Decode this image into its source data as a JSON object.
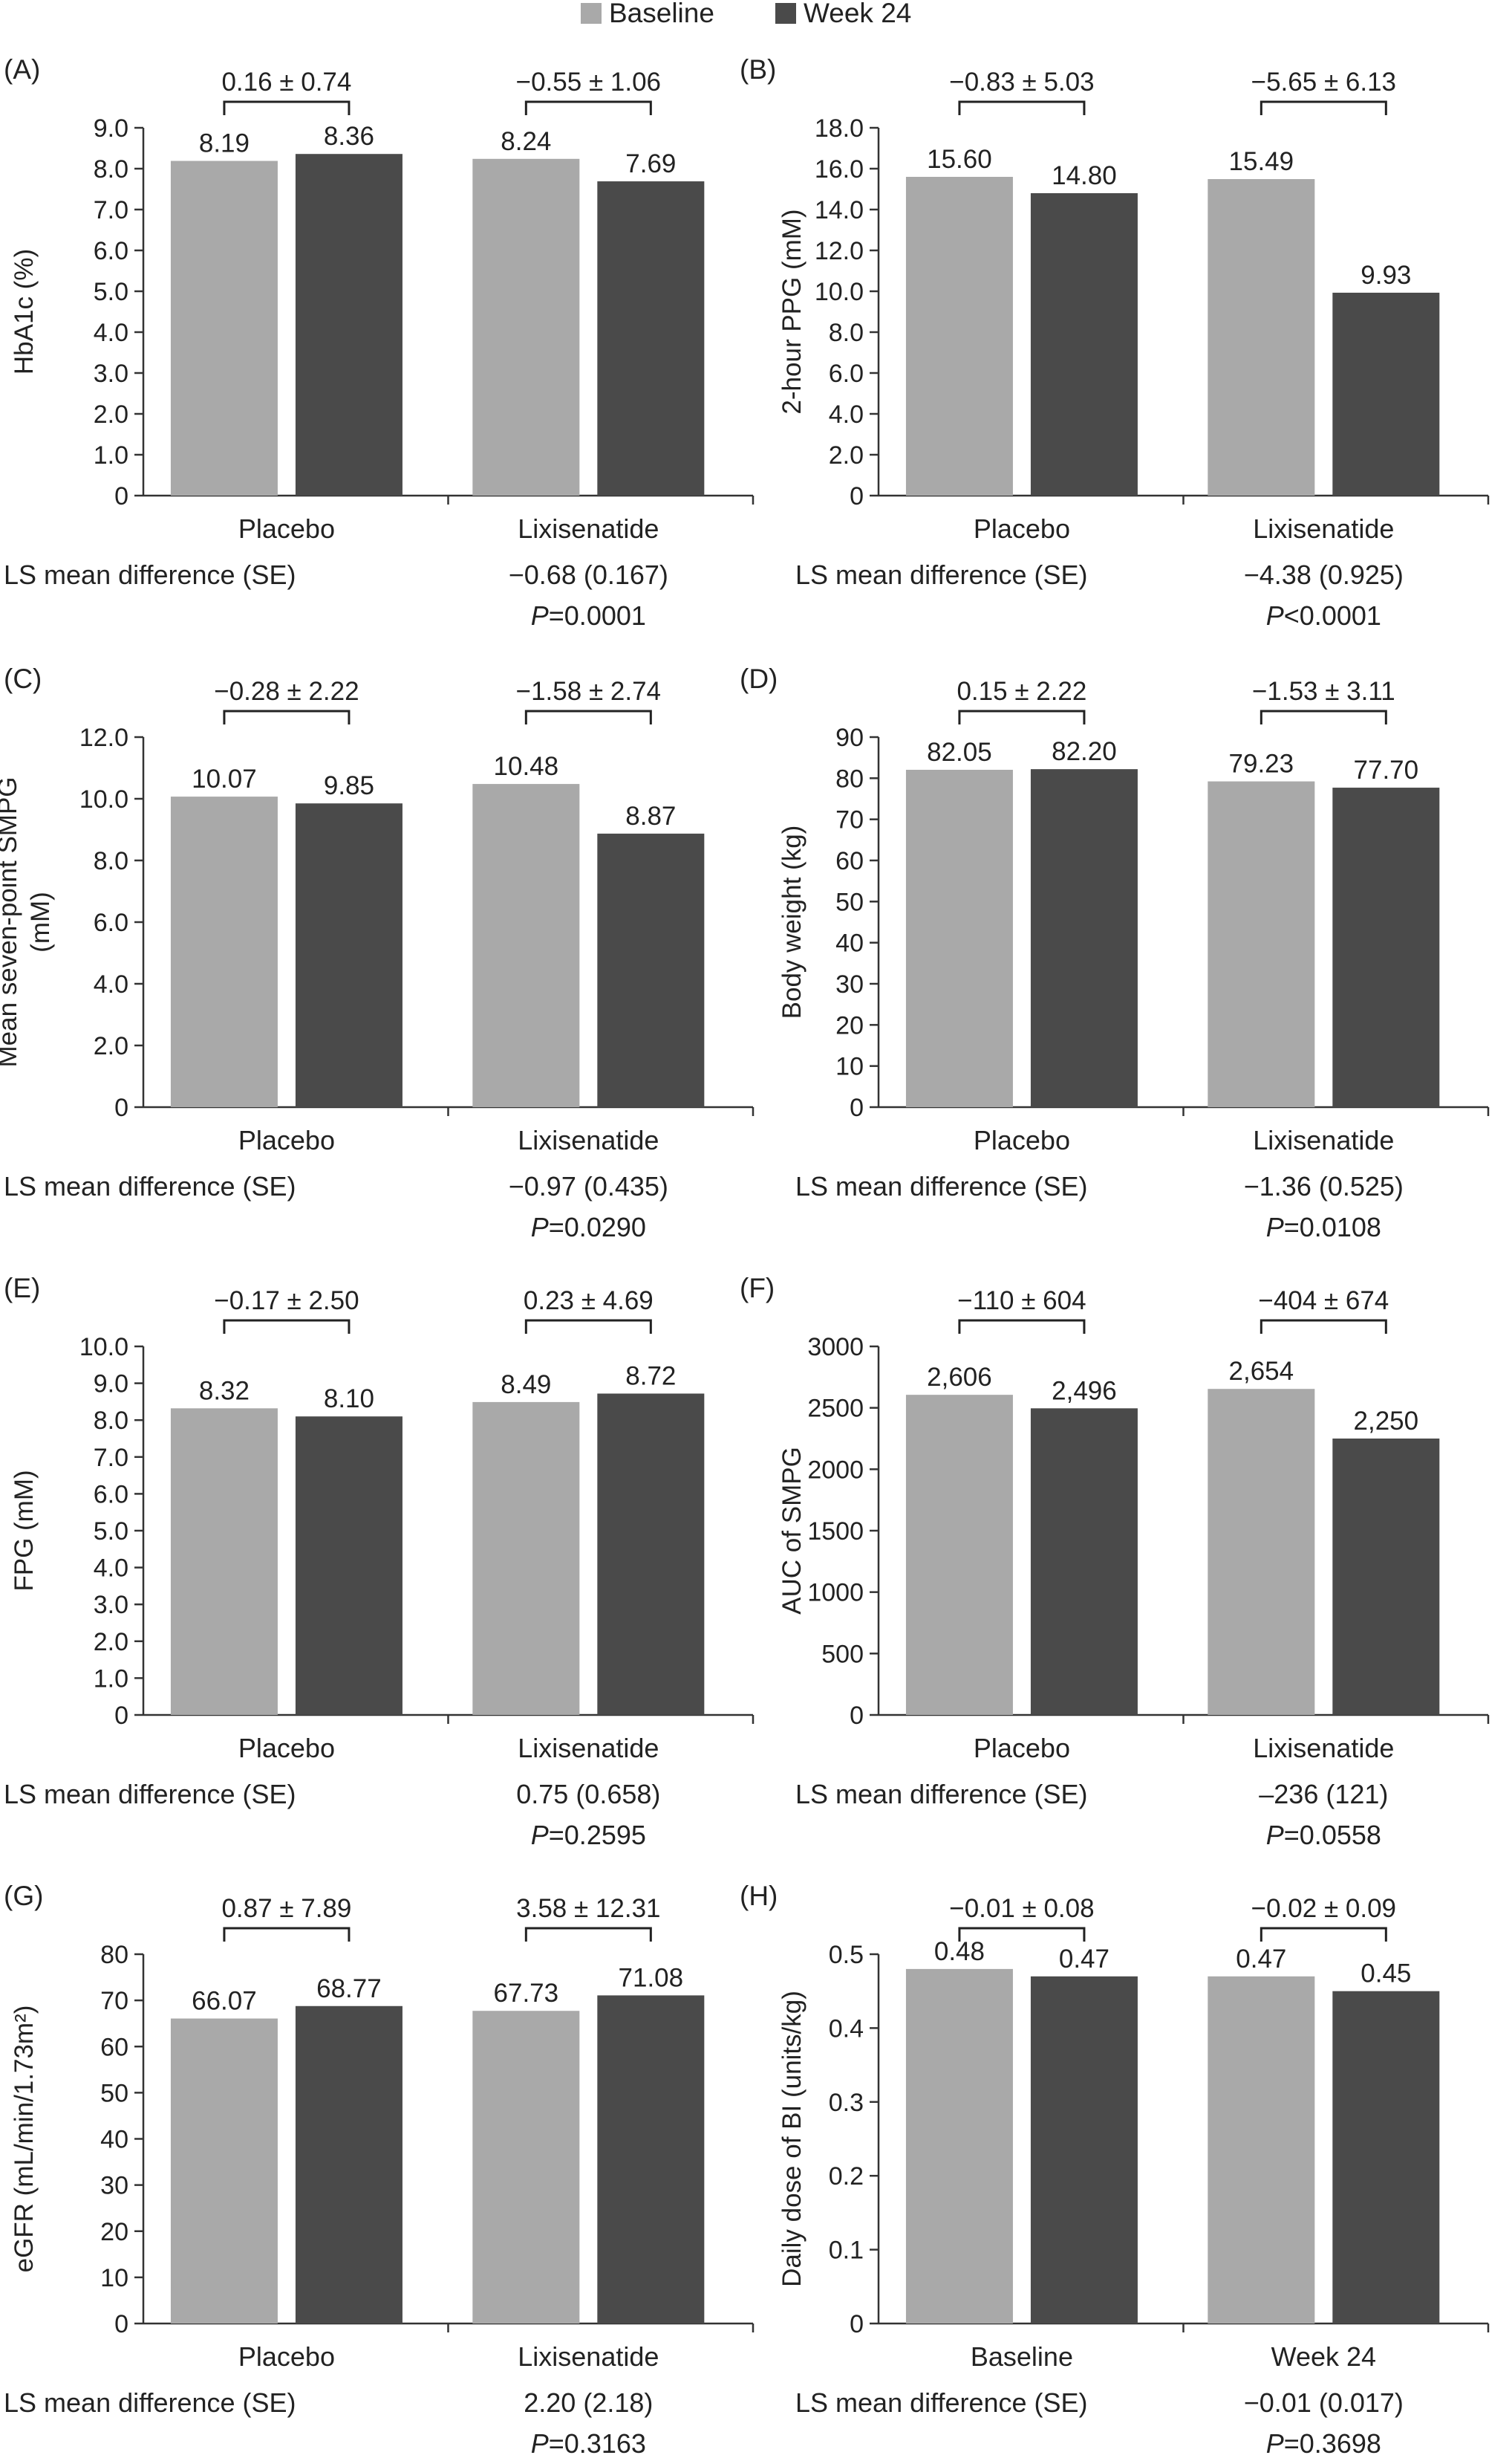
{
  "legend": {
    "items": [
      {
        "label": "Baseline",
        "color": "#a9a9a9"
      },
      {
        "label": "Week 24",
        "color": "#4a4a4a"
      }
    ],
    "placement": "top-center"
  },
  "chart_data": [
    {
      "panel": "(A)",
      "type": "bar",
      "ylabel": "HbA1c (%)",
      "ylim": [
        0,
        9.0
      ],
      "yticks": [
        "0",
        "1.0",
        "2.0",
        "3.0",
        "4.0",
        "5.0",
        "6.0",
        "7.0",
        "8.0",
        "9.0"
      ],
      "categories": [
        "Placebo",
        "Lixisenatide"
      ],
      "series": [
        {
          "name": "Baseline",
          "values": [
            8.19,
            8.24
          ]
        },
        {
          "name": "Week 24",
          "values": [
            8.36,
            7.69
          ]
        }
      ],
      "value_labels": [
        [
          "8.19",
          "8.36"
        ],
        [
          "8.24",
          "7.69"
        ]
      ],
      "change_labels": [
        "0.16 ± 0.74",
        "−0.55 ± 1.06"
      ],
      "stat_label": "LS mean difference (SE)",
      "stat_value": "−0.68 (0.167)",
      "p_prefix": "P",
      "p_text": "=0.0001",
      "grid": false
    },
    {
      "panel": "(B)",
      "type": "bar",
      "ylabel": "2-hour PPG (mM)",
      "ylim": [
        0,
        18.0
      ],
      "yticks": [
        "0",
        "2.0",
        "4.0",
        "6.0",
        "8.0",
        "10.0",
        "12.0",
        "14.0",
        "16.0",
        "18.0"
      ],
      "categories": [
        "Placebo",
        "Lixisenatide"
      ],
      "series": [
        {
          "name": "Baseline",
          "values": [
            15.6,
            15.49
          ]
        },
        {
          "name": "Week 24",
          "values": [
            14.8,
            9.93
          ]
        }
      ],
      "value_labels": [
        [
          "15.60",
          "14.80"
        ],
        [
          "15.49",
          "9.93"
        ]
      ],
      "change_labels": [
        "−0.83 ± 5.03",
        "−5.65 ± 6.13"
      ],
      "stat_label": "LS mean difference (SE)",
      "stat_value": "−4.38 (0.925)",
      "p_prefix": "P",
      "p_text": "<0.0001",
      "grid": false
    },
    {
      "panel": "(C)",
      "type": "bar",
      "ylabel": [
        "Mean seven-point SMPG",
        "(mM)"
      ],
      "ylim": [
        0,
        12.0
      ],
      "yticks": [
        "0",
        "2.0",
        "4.0",
        "6.0",
        "8.0",
        "10.0",
        "12.0"
      ],
      "categories": [
        "Placebo",
        "Lixisenatide"
      ],
      "series": [
        {
          "name": "Baseline",
          "values": [
            10.07,
            10.48
          ]
        },
        {
          "name": "Week 24",
          "values": [
            9.85,
            8.87
          ]
        }
      ],
      "value_labels": [
        [
          "10.07",
          "9.85"
        ],
        [
          "10.48",
          "8.87"
        ]
      ],
      "change_labels": [
        "−0.28 ± 2.22",
        "−1.58 ± 2.74"
      ],
      "stat_label": "LS mean difference (SE)",
      "stat_value": "−0.97 (0.435)",
      "p_prefix": "P",
      "p_text": "=0.0290",
      "grid": false
    },
    {
      "panel": "(D)",
      "type": "bar",
      "ylabel": "Body weight (kg)",
      "ylim": [
        0,
        90
      ],
      "yticks": [
        "0",
        "10",
        "20",
        "30",
        "40",
        "50",
        "60",
        "70",
        "80",
        "90"
      ],
      "categories": [
        "Placebo",
        "Lixisenatide"
      ],
      "series": [
        {
          "name": "Baseline",
          "values": [
            82.05,
            79.23
          ]
        },
        {
          "name": "Week 24",
          "values": [
            82.2,
            77.7
          ]
        }
      ],
      "value_labels": [
        [
          "82.05",
          "82.20"
        ],
        [
          "79.23",
          "77.70"
        ]
      ],
      "change_labels": [
        "0.15 ± 2.22",
        "−1.53 ± 3.11"
      ],
      "stat_label": "LS mean difference (SE)",
      "stat_value": "−1.36 (0.525)",
      "p_prefix": "P",
      "p_text": "=0.0108",
      "grid": false
    },
    {
      "panel": "(E)",
      "type": "bar",
      "ylabel": "FPG (mM)",
      "ylim": [
        0,
        10.0
      ],
      "yticks": [
        "0",
        "1.0",
        "2.0",
        "3.0",
        "4.0",
        "5.0",
        "6.0",
        "7.0",
        "8.0",
        "9.0",
        "10.0"
      ],
      "categories": [
        "Placebo",
        "Lixisenatide"
      ],
      "series": [
        {
          "name": "Baseline",
          "values": [
            8.32,
            8.49
          ]
        },
        {
          "name": "Week 24",
          "values": [
            8.1,
            8.72
          ]
        }
      ],
      "value_labels": [
        [
          "8.32",
          "8.10"
        ],
        [
          "8.49",
          "8.72"
        ]
      ],
      "change_labels": [
        "−0.17 ± 2.50",
        "0.23 ± 4.69"
      ],
      "stat_label": "LS mean difference (SE)",
      "stat_value": "0.75 (0.658)",
      "p_prefix": "P",
      "p_text": "=0.2595",
      "grid": false
    },
    {
      "panel": "(F)",
      "type": "bar",
      "ylabel": "AUC of SMPG",
      "ylim": [
        0,
        3000
      ],
      "yticks": [
        "0",
        "500",
        "1000",
        "1500",
        "2000",
        "2500",
        "3000"
      ],
      "categories": [
        "Placebo",
        "Lixisenatide"
      ],
      "series": [
        {
          "name": "Baseline",
          "values": [
            2606,
            2654
          ]
        },
        {
          "name": "Week 24",
          "values": [
            2496,
            2250
          ]
        }
      ],
      "value_labels": [
        [
          "2,606",
          "2,496"
        ],
        [
          "2,654",
          "2,250"
        ]
      ],
      "change_labels": [
        "−110 ± 604",
        "−404 ± 674"
      ],
      "stat_label": "LS mean difference (SE)",
      "stat_value": "–236 (121)",
      "p_prefix": "P",
      "p_text": "=0.0558",
      "grid": false
    },
    {
      "panel": "(G)",
      "type": "bar",
      "ylabel": "eGFR (mL/min/1.73m²)",
      "ylim": [
        0,
        80
      ],
      "yticks": [
        "0",
        "10",
        "20",
        "30",
        "40",
        "50",
        "60",
        "70",
        "80"
      ],
      "categories": [
        "Placebo",
        "Lixisenatide"
      ],
      "series": [
        {
          "name": "Baseline",
          "values": [
            66.07,
            67.73
          ]
        },
        {
          "name": "Week 24",
          "values": [
            68.77,
            71.08
          ]
        }
      ],
      "value_labels": [
        [
          "66.07",
          "68.77"
        ],
        [
          "67.73",
          "71.08"
        ]
      ],
      "change_labels": [
        "0.87 ± 7.89",
        "3.58 ± 12.31"
      ],
      "stat_label": "LS mean difference (SE)",
      "stat_value": "2.20 (2.18)",
      "p_prefix": "P",
      "p_text": "=0.3163",
      "grid": false
    },
    {
      "panel": "(H)",
      "type": "bar",
      "ylabel": "Daily dose of BI (units/kg)",
      "ylim": [
        0,
        0.5
      ],
      "yticks": [
        "0",
        "0.1",
        "0.2",
        "0.3",
        "0.4",
        "0.5"
      ],
      "categories": [
        "Baseline",
        "Week 24"
      ],
      "series": [
        {
          "name": "Baseline",
          "values": [
            0.48,
            0.47
          ]
        },
        {
          "name": "Week 24",
          "values": [
            0.47,
            0.45
          ]
        }
      ],
      "value_labels": [
        [
          "0.48",
          "0.47"
        ],
        [
          "0.47",
          "0.45"
        ]
      ],
      "change_labels": [
        "−0.01 ± 0.08",
        "−0.02 ± 0.09"
      ],
      "stat_label": "LS mean difference (SE)",
      "stat_value": "−0.01 (0.017)",
      "p_prefix": "P",
      "p_text": "=0.3698",
      "grid": false
    }
  ]
}
